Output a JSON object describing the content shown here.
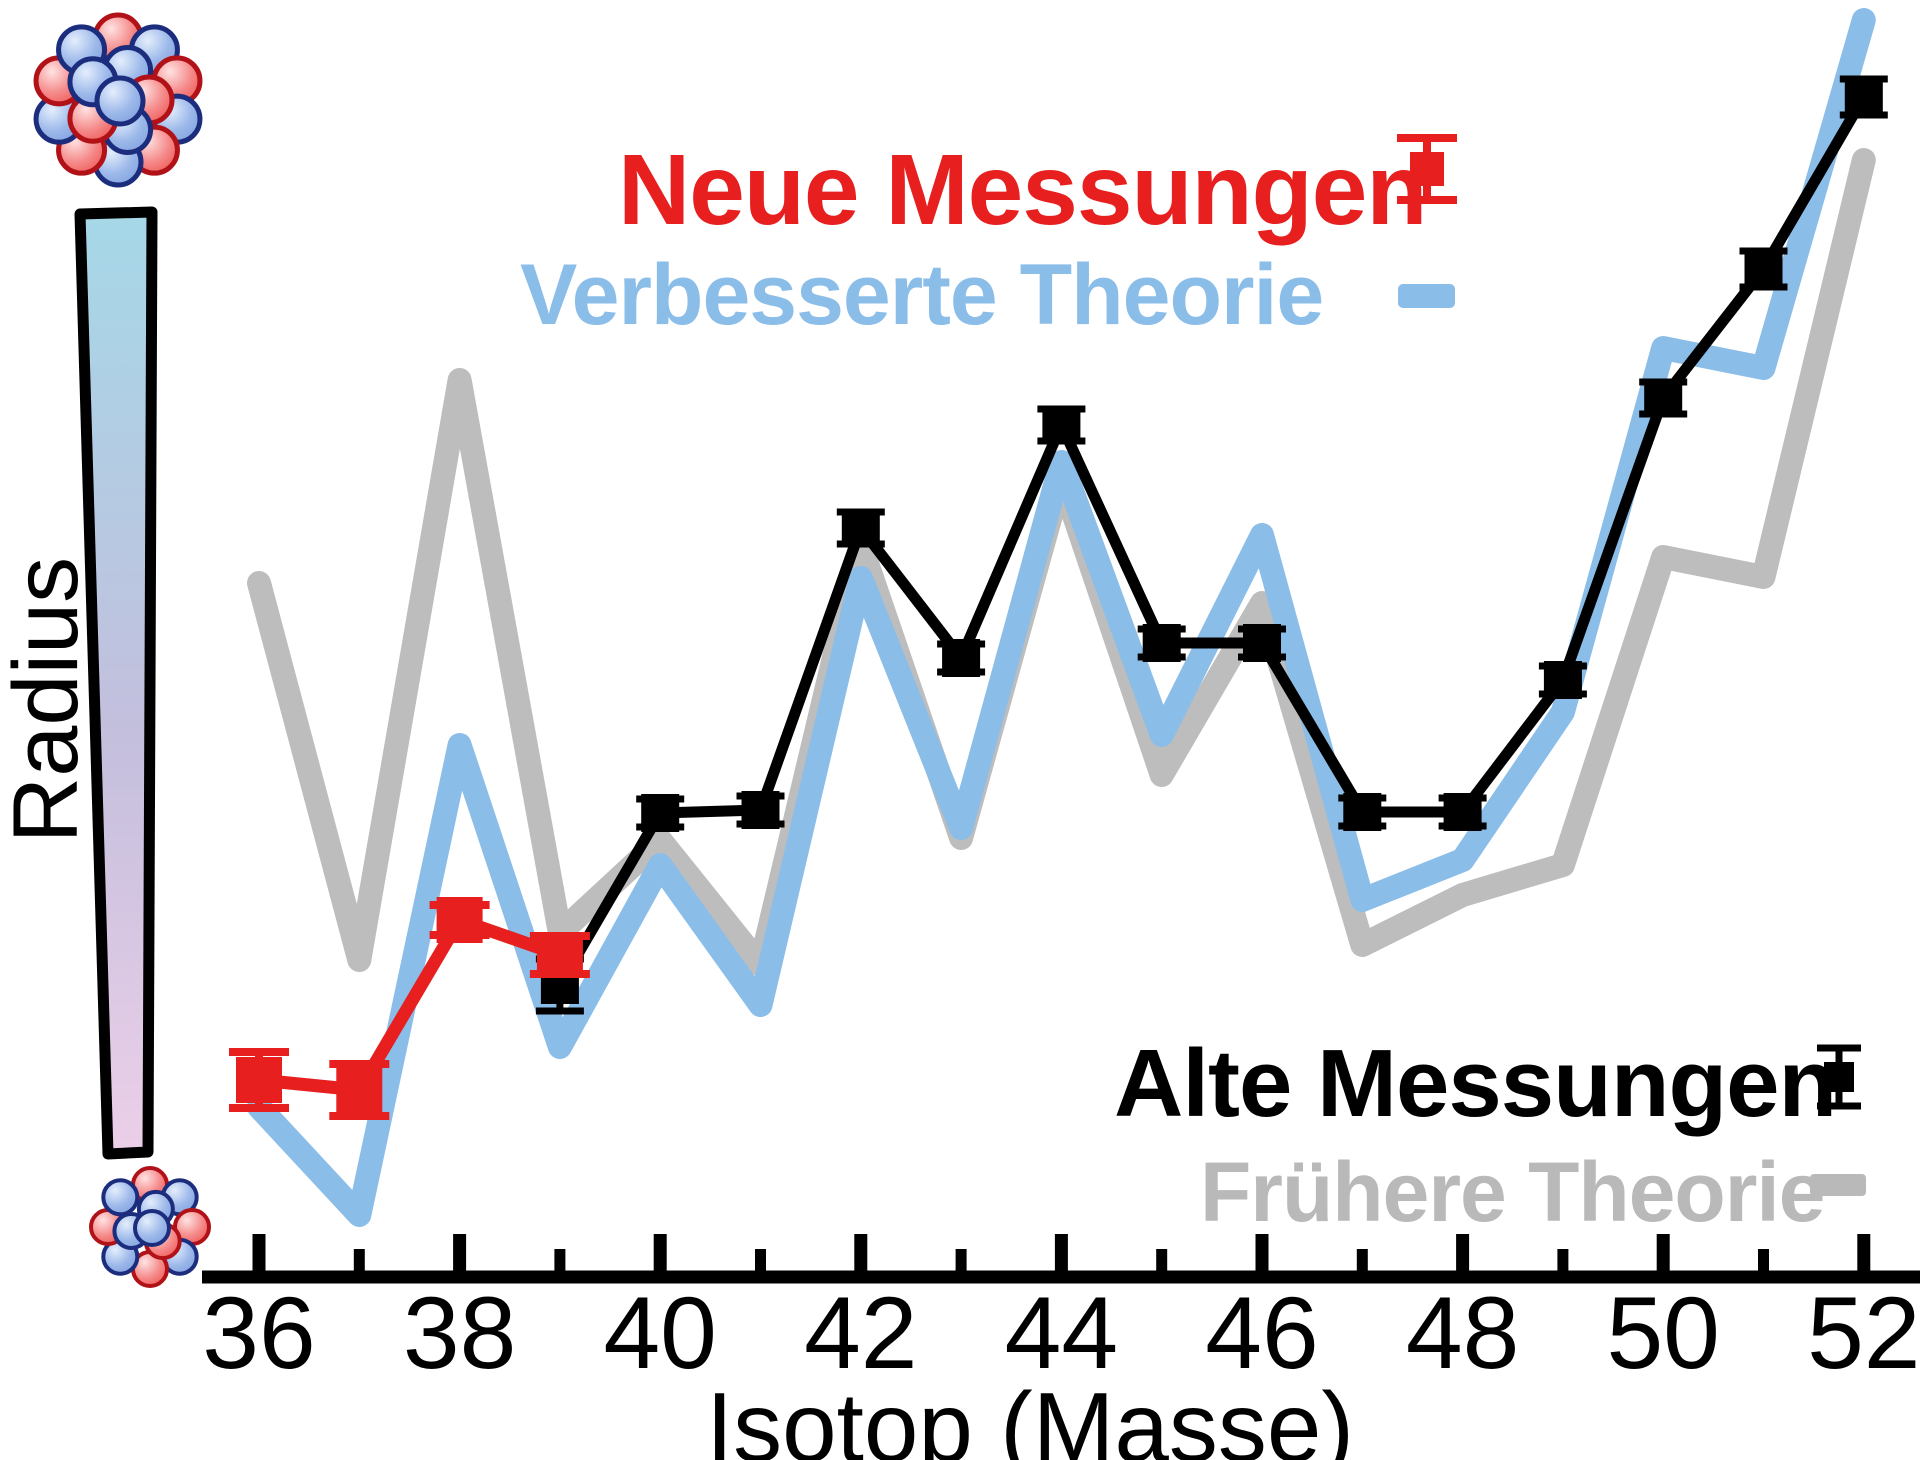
{
  "figure": {
    "y_axis_label": "Radius",
    "x_axis_label": "Isotop (Masse)"
  },
  "legend": {
    "new_measurements": {
      "label": "Neue Messungen",
      "color": "#e71f1f",
      "marker": "red-square-with-error-bar"
    },
    "improved_theory": {
      "label": "Verbesserte Theorie",
      "color": "#8bbde9",
      "marker": "thick-blue-line"
    },
    "old_measurements": {
      "label": "Alte Messungen",
      "color": "#000000",
      "marker": "black-square-with-error-bar"
    },
    "previous_theory": {
      "label": "Frühere Theorie",
      "color": "#b9b9b9",
      "marker": "thick-gray-line"
    }
  },
  "decorations": {
    "large_nucleus": "cluster of red and blue nucleon spheres (top left, large radius)",
    "small_nucleus": "cluster of red and blue nucleon spheres (bottom left, small radius)",
    "radius_scale_bar": {
      "top_color": "#a5d8e8",
      "mid_color": "#c3bfdd",
      "bottom_color": "#eccfe8",
      "outline": "#000000"
    }
  },
  "chart_data": {
    "type": "line",
    "title": "",
    "xlabel": "Isotop (Masse)",
    "ylabel": "Radius",
    "x_range": [
      36,
      52
    ],
    "x_major_ticks": [
      36,
      38,
      40,
      42,
      44,
      46,
      48,
      50,
      52
    ],
    "x_minor_ticks": [
      37,
      39,
      41,
      43,
      45,
      47,
      49,
      51
    ],
    "y_unit": "relative radius (unlabeled axis, arbitrary units)",
    "y_plot_range": [
      0,
      130
    ],
    "grid": false,
    "legend_position": "top-center and bottom-right, free-floating",
    "series": [
      {
        "id": "fruehere-theorie",
        "name": "Frühere Theorie",
        "kind": "line",
        "color": "#bdbdbd",
        "line_width": 24,
        "x": [
          36,
          37,
          38,
          39,
          40,
          41,
          42,
          43,
          44,
          45,
          46,
          47,
          48,
          49,
          50,
          51,
          52
        ],
        "values": [
          68.7,
          31.0,
          89.0,
          33.7,
          43.0,
          30.5,
          72.5,
          43.2,
          79.2,
          49.5,
          66.7,
          32.5,
          37.5,
          40.5,
          71.3,
          69.3,
          111.0
        ]
      },
      {
        "id": "verbesserte-theorie",
        "name": "Verbesserte Theorie",
        "kind": "line",
        "color": "#8bbde9",
        "line_width": 24,
        "x": [
          36,
          37,
          38,
          39,
          40,
          41,
          42,
          43,
          44,
          45,
          46,
          47,
          48,
          49,
          50,
          51,
          52
        ],
        "values": [
          16.3,
          5.5,
          52.5,
          22.3,
          40.5,
          26.5,
          69.2,
          44.2,
          80.8,
          53.5,
          73.5,
          37.0,
          41.0,
          55.8,
          92.2,
          90.2,
          125.0
        ]
      },
      {
        "id": "alte-messungen",
        "name": "Alte Messungen",
        "kind": "line+markers",
        "color": "#000000",
        "line_width": 11,
        "marker": "square",
        "marker_size": 38,
        "err_cap_halfwidth": 24,
        "err_stroke": 7,
        "x": [
          39,
          40,
          41,
          42,
          43,
          44,
          45,
          46,
          47,
          48,
          49,
          50,
          51,
          52
        ],
        "values": [
          28.5,
          45.7,
          46.0,
          74.2,
          61.2,
          84.5,
          62.7,
          62.7,
          45.8,
          45.8,
          59.0,
          87.2,
          100.1,
          117.3
        ],
        "errors": [
          2.6,
          1.4,
          1.4,
          1.6,
          1.4,
          1.6,
          1.4,
          1.4,
          1.4,
          1.4,
          1.4,
          1.6,
          1.8,
          1.8
        ]
      },
      {
        "id": "neue-messungen",
        "name": "Neue Messungen",
        "kind": "line+markers",
        "color": "#e71f1f",
        "line_width": 13,
        "marker": "square",
        "marker_size": 46,
        "err_cap_halfwidth": 30,
        "err_stroke": 8,
        "x": [
          36,
          37,
          38,
          39
        ],
        "values": [
          19.0,
          18.0,
          35.0,
          31.5
        ],
        "errors": [
          2.8,
          2.6,
          1.5,
          1.9
        ]
      }
    ]
  }
}
